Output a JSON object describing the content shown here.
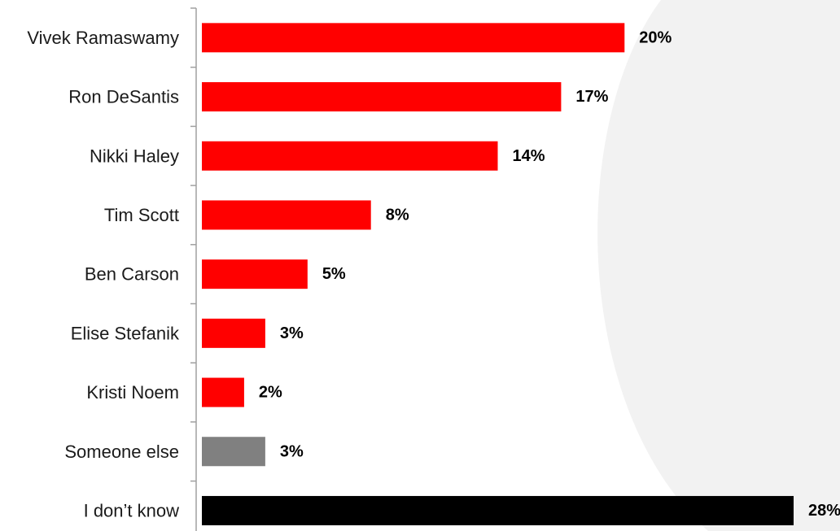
{
  "chart_data": {
    "type": "bar",
    "orientation": "horizontal",
    "categories": [
      "Vivek Ramaswamy",
      "Ron DeSantis",
      "Nikki Haley",
      "Tim Scott",
      "Ben Carson",
      "Elise Stefanik",
      "Kristi Noem",
      "Someone else",
      "I don’t know"
    ],
    "values": [
      20,
      17,
      14,
      8,
      5,
      3,
      2,
      3,
      28
    ],
    "value_labels": [
      "20%",
      "17%",
      "14%",
      "8%",
      "5%",
      "3%",
      "2%",
      "3%",
      "28%"
    ],
    "unit": "%",
    "xlim": [
      0,
      28
    ],
    "grid": false,
    "legend": "none",
    "colors": {
      "candidate": "#ff0000",
      "someone_else": "#808080",
      "dont_know": "#000000",
      "axis": "#a0a0a0",
      "background_arc": "#f2f2f2"
    },
    "bar_color_keys": [
      "candidate",
      "candidate",
      "candidate",
      "candidate",
      "candidate",
      "candidate",
      "candidate",
      "someone_else",
      "dont_know"
    ]
  }
}
